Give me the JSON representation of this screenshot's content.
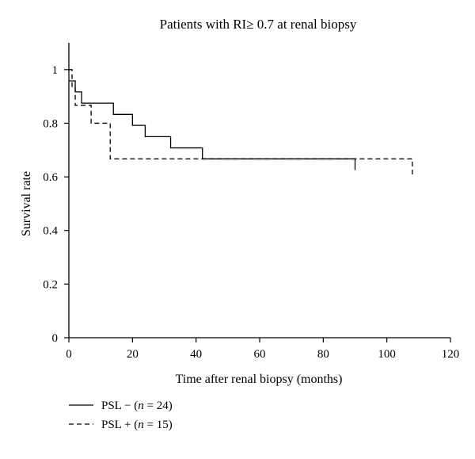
{
  "chart_data": {
    "type": "line",
    "subtype": "kaplan-meier step curve",
    "title": "Patients with RI≥ 0.7 at renal biopsy",
    "xlabel": "Time after renal biopsy (months)",
    "ylabel": "Survival rate",
    "xlim": [
      0,
      120
    ],
    "ylim": [
      0,
      1.1
    ],
    "xticks": [
      0,
      20,
      40,
      60,
      80,
      100,
      120
    ],
    "yticks": [
      0,
      0.2,
      0.4,
      0.6,
      0.8,
      1
    ],
    "xtick_labels": [
      "0",
      "20",
      "40",
      "60",
      "80",
      "100",
      "120"
    ],
    "ytick_labels": [
      "0",
      "0.2",
      "0.4",
      "0.6",
      "0.8",
      "1"
    ],
    "grid": false,
    "legend_position": "bottom-left, below plot",
    "series": [
      {
        "name": "PSL − (n = 24)",
        "legend": {
          "prefix": "PSL − (",
          "italic": "n",
          "suffix": " = 24)"
        },
        "style": "solid",
        "color": "#000000",
        "x": [
          0,
          2,
          4,
          14,
          20,
          24,
          32,
          42,
          90
        ],
        "y": [
          0.958,
          0.917,
          0.875,
          0.833,
          0.792,
          0.75,
          0.708,
          0.667,
          0.625
        ]
      },
      {
        "name": "PSL + (n = 15)",
        "legend": {
          "prefix": "PSL + (",
          "italic": "n",
          "suffix": " = 15)"
        },
        "style": "dashed",
        "color": "#000000",
        "x": [
          0,
          1,
          2,
          7,
          13,
          108
        ],
        "y": [
          1.0,
          0.933,
          0.867,
          0.8,
          0.667,
          0.6
        ]
      }
    ]
  }
}
